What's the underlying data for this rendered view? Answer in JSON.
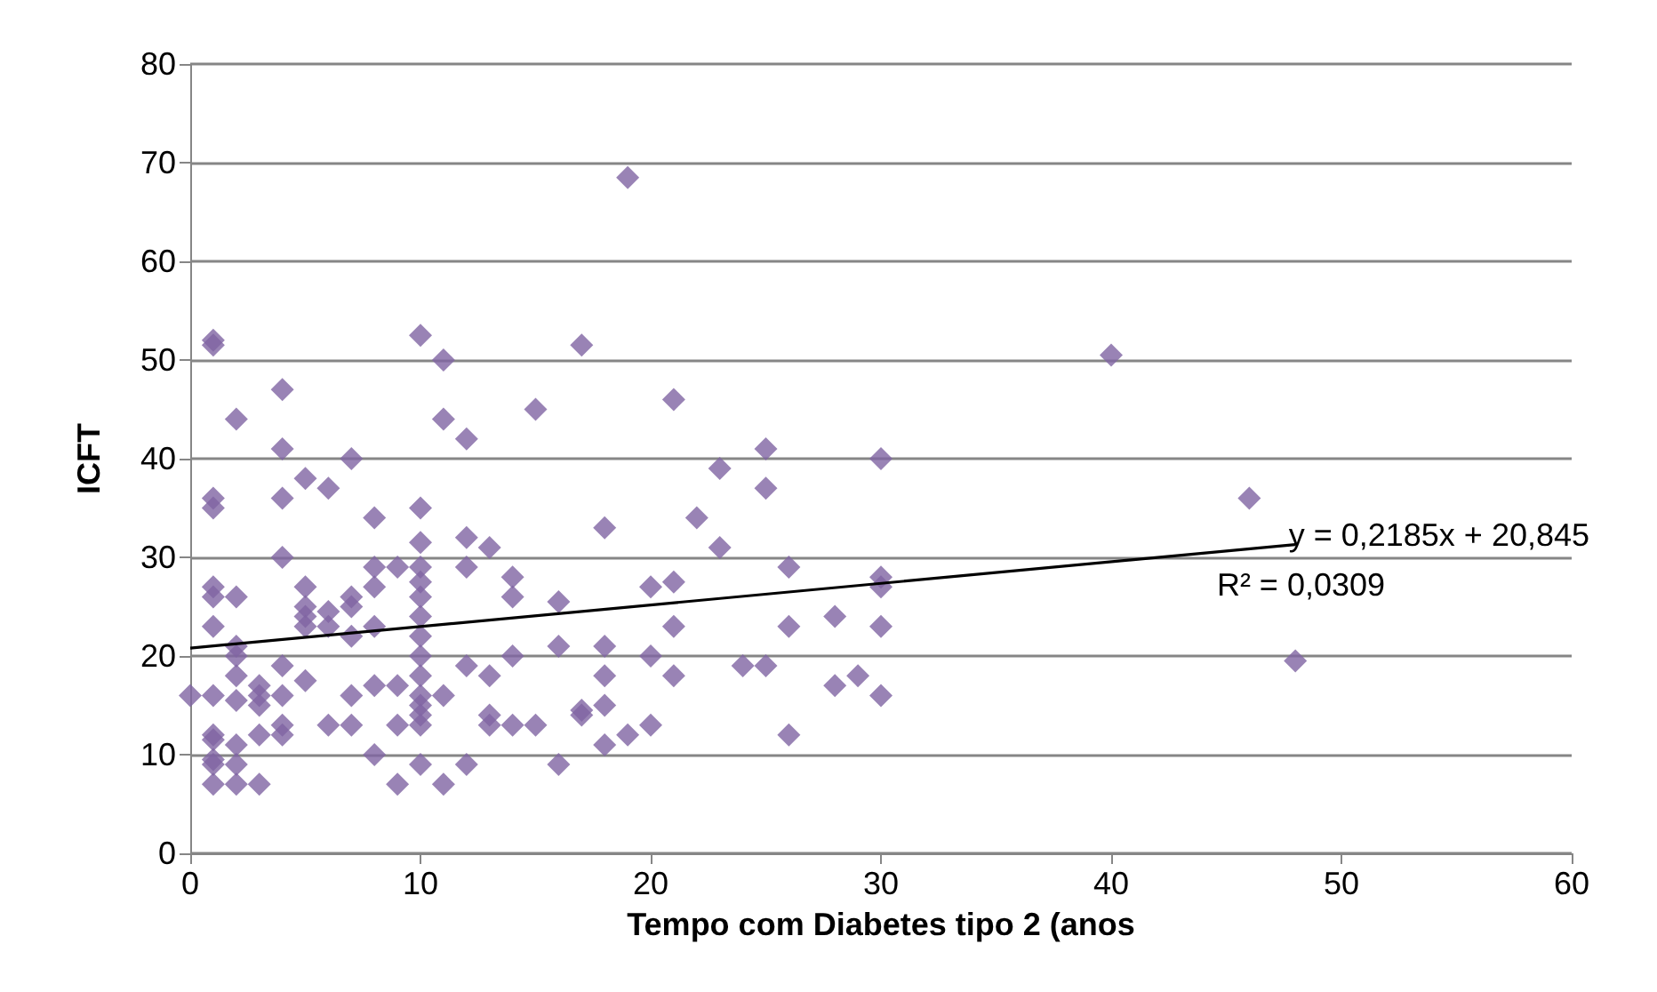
{
  "chart_data": {
    "type": "scatter",
    "xlabel": "Tempo com Diabetes tipo 2 (anos",
    "ylabel": "ICFT",
    "xlim": [
      0,
      60
    ],
    "xticks": [
      0,
      10,
      20,
      30,
      40,
      50,
      60
    ],
    "ylim": [
      0,
      80
    ],
    "yticks": [
      0,
      10,
      20,
      30,
      40,
      50,
      60,
      70,
      80
    ],
    "grid": "y",
    "marker": "diamond",
    "annotations": [
      "y = 0,2185x + 20,845",
      "R² = 0,0309"
    ],
    "series": [
      {
        "color": "#8064a2",
        "x": [
          0,
          1,
          1,
          1,
          1,
          1,
          1,
          1,
          1,
          1,
          1,
          1,
          1,
          1,
          2,
          2,
          2,
          2,
          2,
          2,
          2,
          2,
          2,
          3,
          3,
          3,
          3,
          3,
          4,
          4,
          4,
          4,
          4,
          4,
          4,
          4,
          5,
          5,
          5,
          5,
          5,
          5,
          6,
          6,
          6,
          6,
          7,
          7,
          7,
          7,
          7,
          7,
          8,
          8,
          8,
          8,
          8,
          8,
          9,
          9,
          9,
          9,
          10,
          10,
          10,
          10,
          10,
          10,
          10,
          10,
          10,
          10,
          10,
          10,
          10,
          10,
          10,
          11,
          11,
          11,
          11,
          12,
          12,
          12,
          12,
          12,
          13,
          13,
          13,
          13,
          14,
          14,
          14,
          14,
          15,
          15,
          16,
          16,
          16,
          17,
          17,
          17,
          18,
          18,
          18,
          18,
          18,
          19,
          19,
          20,
          20,
          20,
          21,
          21,
          21,
          21,
          22,
          23,
          23,
          24,
          25,
          25,
          25,
          26,
          26,
          26,
          28,
          28,
          29,
          30,
          30,
          30,
          30,
          30,
          40,
          46,
          48
        ],
        "values": [
          16,
          52,
          51.5,
          36,
          35,
          27,
          26,
          23,
          16,
          12,
          11.5,
          9.5,
          9,
          7,
          44,
          26,
          21,
          20,
          18,
          15.5,
          11,
          9,
          7,
          17,
          16,
          15,
          12,
          7,
          47,
          41,
          36,
          30,
          19,
          16,
          13,
          12,
          38,
          27,
          25,
          24,
          23,
          17.5,
          37,
          24.5,
          23,
          13,
          40,
          26,
          25,
          22,
          16,
          13,
          34,
          29,
          27,
          23,
          17,
          10,
          29,
          17,
          13,
          7,
          52.5,
          35,
          31.5,
          29,
          27.5,
          26,
          24,
          22,
          20,
          18,
          16,
          15,
          14,
          13,
          9,
          50,
          44,
          16,
          7,
          42,
          32,
          29,
          19,
          9,
          31,
          18,
          14,
          13,
          28,
          26,
          20,
          13,
          45,
          13,
          25.5,
          21,
          9,
          51.5,
          14.5,
          14,
          33,
          21,
          18,
          15,
          11,
          68.5,
          12,
          27,
          20,
          13,
          46,
          27.5,
          23,
          18,
          34,
          39,
          31,
          19,
          41,
          37,
          19,
          29,
          23,
          12,
          24,
          17,
          18,
          40,
          28,
          27,
          23,
          16,
          50.5,
          36,
          19.5
        ]
      },
      {
        "type": "line",
        "color": "#000000",
        "x": [
          0,
          48
        ],
        "values": [
          20.8,
          31.3
        ],
        "marker": "none",
        "line_style": "solid"
      }
    ]
  }
}
